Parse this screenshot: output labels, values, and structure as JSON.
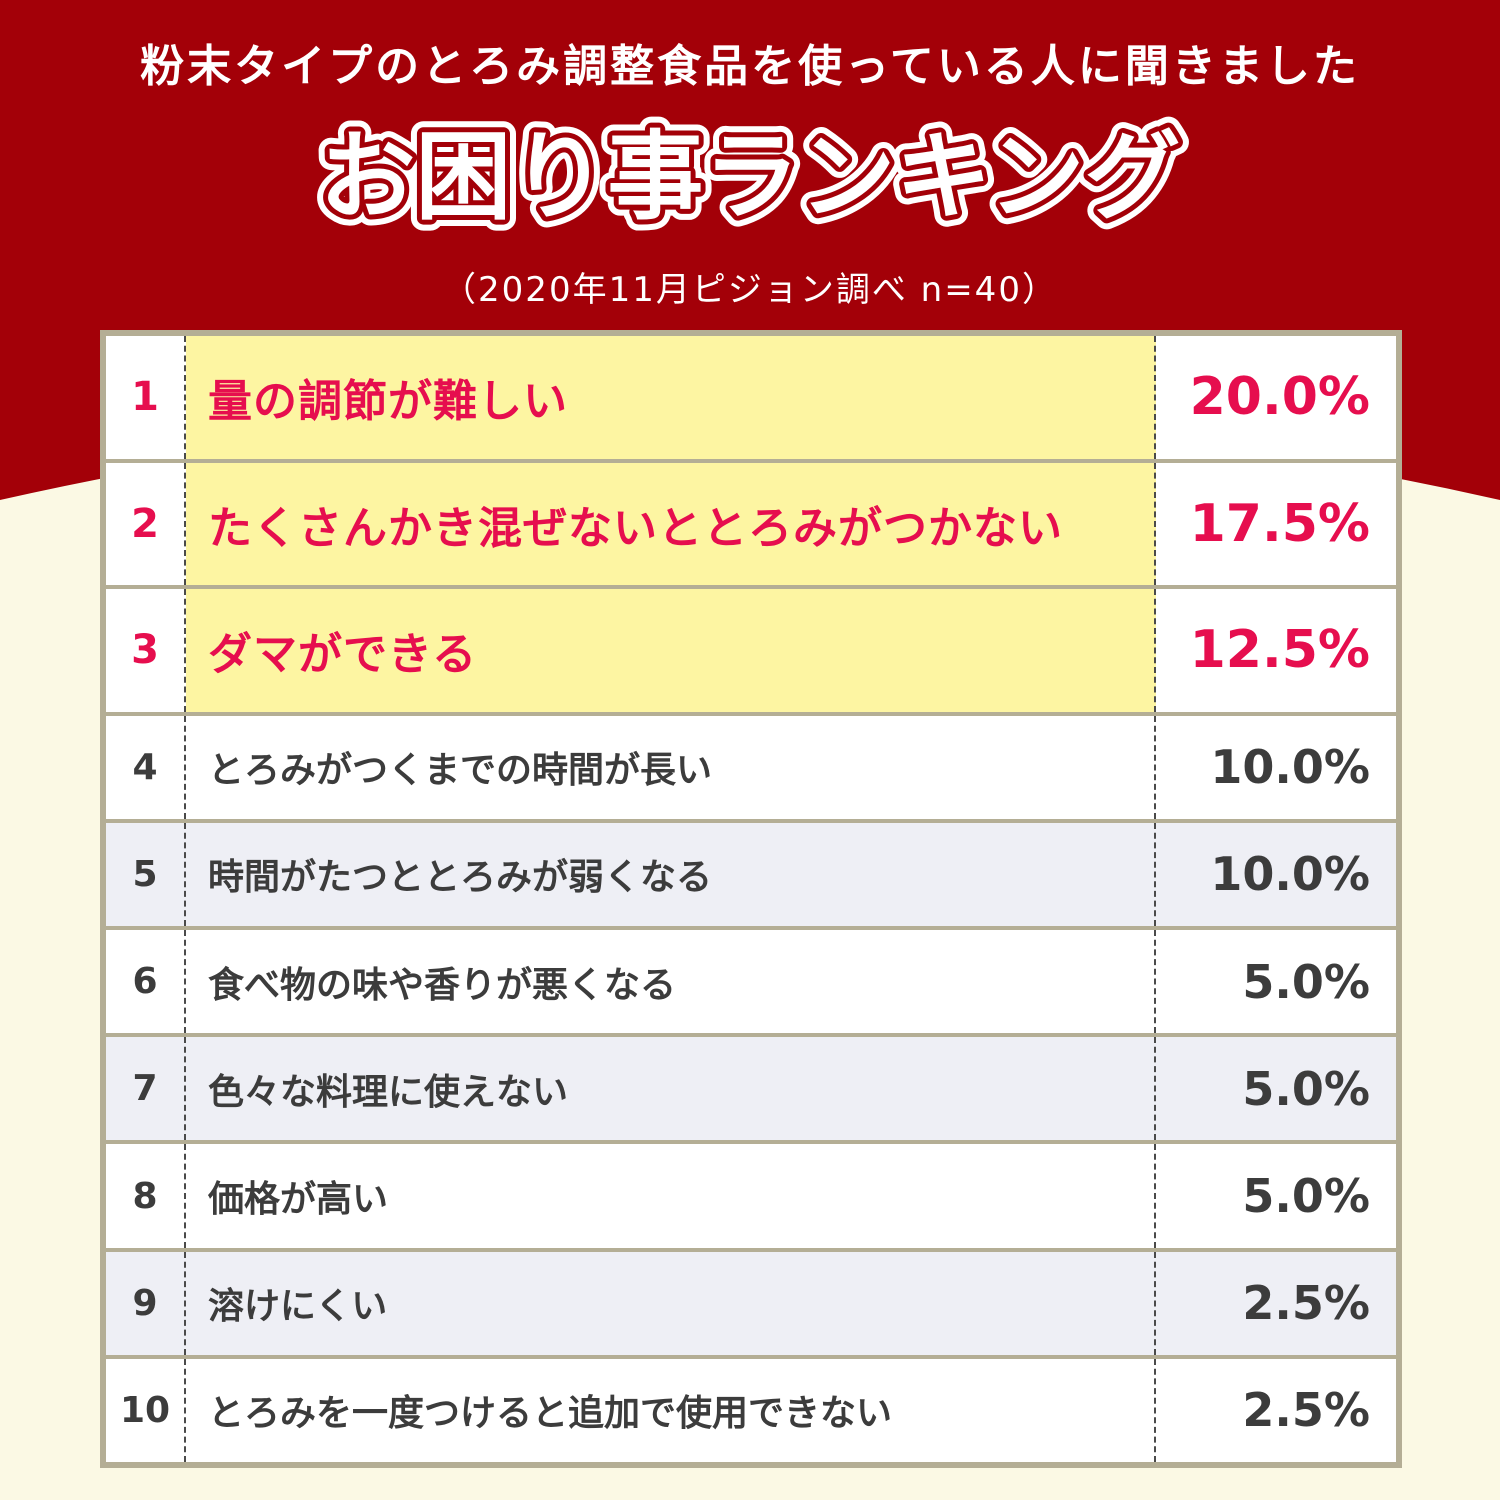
{
  "header": {
    "subtitle": "粉末タイプのとろみ調整食品を使っている人に聞きました",
    "title": "お困り事ランキング",
    "source": "（2020年11月ピジョン調べ n=40）"
  },
  "colors": {
    "header_red": "#a30008",
    "background_cream": "#fbf9e4",
    "highlight_pink": "#e60e4e",
    "highlight_yellow": "#fdf5a2",
    "text_dark": "#3c3c3c",
    "row_gray": "#eeeff5",
    "border": "#b4ae95"
  },
  "chart_data": {
    "type": "table",
    "title": "お困り事ランキング",
    "unit": "%",
    "rows": [
      {
        "rank": "1",
        "label": "量の調節が難しい",
        "value": 20.0,
        "value_label": "20.0%"
      },
      {
        "rank": "2",
        "label": "たくさんかき混ぜないととろみがつかない",
        "value": 17.5,
        "value_label": "17.5%"
      },
      {
        "rank": "3",
        "label": "ダマができる",
        "value": 12.5,
        "value_label": "12.5%"
      },
      {
        "rank": "4",
        "label": "とろみがつくまでの時間が長い",
        "value": 10.0,
        "value_label": "10.0%"
      },
      {
        "rank": "5",
        "label": "時間がたつととろみが弱くなる",
        "value": 10.0,
        "value_label": "10.0%"
      },
      {
        "rank": "6",
        "label": "食べ物の味や香りが悪くなる",
        "value": 5.0,
        "value_label": "5.0%"
      },
      {
        "rank": "7",
        "label": "色々な料理に使えない",
        "value": 5.0,
        "value_label": "5.0%"
      },
      {
        "rank": "8",
        "label": "価格が高い",
        "value": 5.0,
        "value_label": "5.0%"
      },
      {
        "rank": "9",
        "label": "溶けにくい",
        "value": 2.5,
        "value_label": "2.5%"
      },
      {
        "rank": "10",
        "label": "とろみを一度つけると追加で使用できない",
        "value": 2.5,
        "value_label": "2.5%"
      }
    ]
  }
}
